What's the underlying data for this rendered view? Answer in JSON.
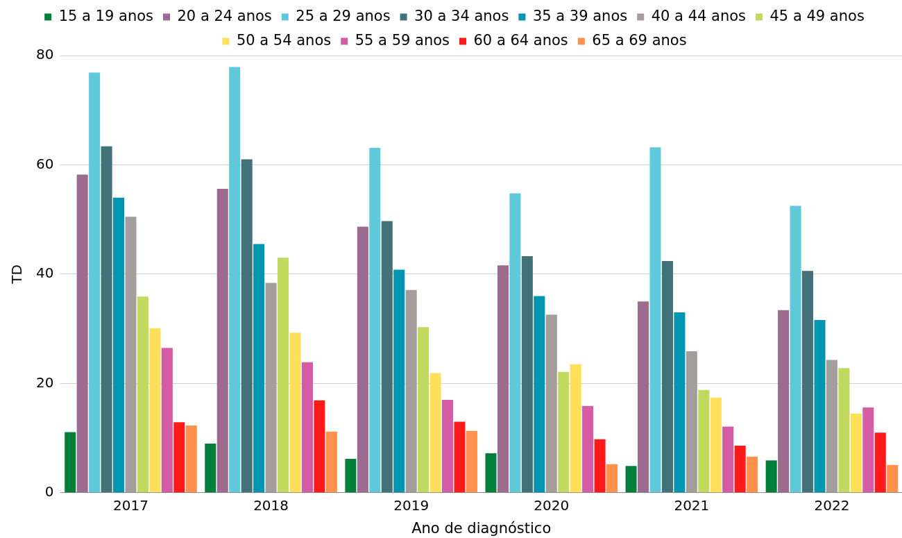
{
  "chart_data": {
    "type": "bar",
    "xlabel": "Ano de diagnóstico",
    "ylabel": "TD",
    "categories": [
      "2017",
      "2018",
      "2019",
      "2020",
      "2021",
      "2022"
    ],
    "series": [
      {
        "name": "15 a 19 anos",
        "color": "#007f3a",
        "values": [
          11.1,
          9.0,
          6.2,
          7.2,
          4.9,
          5.9
        ]
      },
      {
        "name": "20 a 24 anos",
        "color": "#9e6b90",
        "values": [
          58.2,
          55.6,
          48.7,
          41.6,
          35.0,
          33.4
        ]
      },
      {
        "name": "25 a 29 anos",
        "color": "#5fc9da",
        "values": [
          76.9,
          77.9,
          63.1,
          54.8,
          63.2,
          52.5
        ]
      },
      {
        "name": "30 a 34 anos",
        "color": "#42717a",
        "values": [
          63.4,
          61.0,
          49.7,
          43.3,
          42.4,
          40.6
        ]
      },
      {
        "name": "35 a 39 anos",
        "color": "#0096b2",
        "values": [
          54.0,
          45.5,
          40.8,
          36.0,
          33.0,
          31.6
        ]
      },
      {
        "name": "40 a 44 anos",
        "color": "#a39d9c",
        "values": [
          50.5,
          38.4,
          37.1,
          32.6,
          25.9,
          24.3
        ]
      },
      {
        "name": "45 a 49 anos",
        "color": "#c1d95e",
        "values": [
          35.9,
          43.0,
          30.3,
          22.1,
          18.8,
          22.8
        ]
      },
      {
        "name": "50 a 54 anos",
        "color": "#ffde59",
        "values": [
          30.1,
          29.3,
          21.9,
          23.5,
          17.4,
          14.5
        ]
      },
      {
        "name": "55 a 59 anos",
        "color": "#d45ba4",
        "values": [
          26.5,
          23.9,
          17.0,
          15.9,
          12.1,
          15.6
        ]
      },
      {
        "name": "60 a 64 anos",
        "color": "#ff1a1a",
        "values": [
          12.9,
          16.9,
          13.0,
          9.8,
          8.6,
          11.0
        ]
      },
      {
        "name": "65 a 69 anos",
        "color": "#ff914d",
        "values": [
          12.3,
          11.2,
          11.3,
          5.2,
          6.6,
          5.1
        ]
      }
    ],
    "ylim": [
      0,
      80
    ],
    "yticks": [
      0,
      20,
      40,
      60,
      80
    ],
    "grid": "y",
    "legend": "top"
  }
}
